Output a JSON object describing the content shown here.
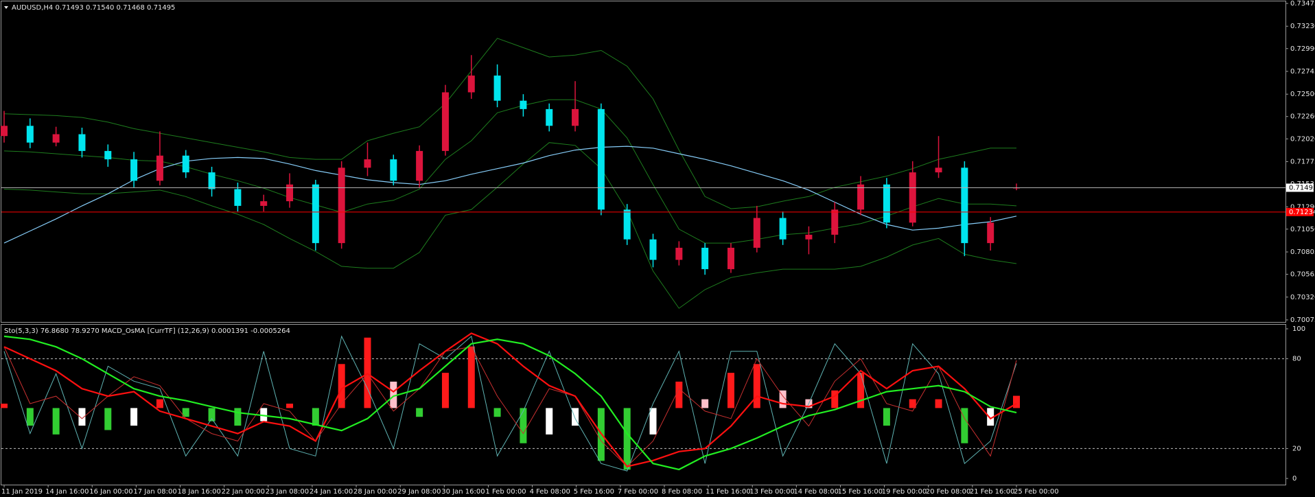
{
  "chart_data": [
    {
      "type": "candlestick",
      "title": "AUDUSD,H4  0.71493 0.71540 0.71468 0.71495",
      "open": [
        0.7205,
        0.7216,
        0.7198,
        0.7207,
        0.7189,
        0.718,
        0.7157,
        0.7184,
        0.7166,
        0.7148,
        0.713,
        0.7135,
        0.7153,
        0.709,
        0.7171,
        0.718,
        0.7157,
        0.7189,
        0.7252,
        0.727,
        0.7243,
        0.7234,
        0.7216,
        0.7234,
        0.7126,
        0.7094,
        0.7072,
        0.7085,
        0.7062,
        0.7085,
        0.7117,
        0.7094,
        0.7099,
        0.7126,
        0.7153,
        0.7112,
        0.7166,
        0.7171,
        0.709,
        0.71493
      ],
      "high": [
        0.7232,
        0.7224,
        0.7215,
        0.7214,
        0.7196,
        0.7188,
        0.721,
        0.719,
        0.7172,
        0.7155,
        0.7142,
        0.7165,
        0.7158,
        0.7178,
        0.7198,
        0.7185,
        0.7195,
        0.726,
        0.7292,
        0.7282,
        0.725,
        0.724,
        0.7264,
        0.724,
        0.7132,
        0.71,
        0.7092,
        0.709,
        0.709,
        0.713,
        0.7124,
        0.7108,
        0.7134,
        0.7162,
        0.716,
        0.7178,
        0.7205,
        0.7178,
        0.7118,
        0.7154
      ],
      "low": [
        0.7198,
        0.7192,
        0.7194,
        0.7182,
        0.7172,
        0.715,
        0.7152,
        0.716,
        0.714,
        0.7124,
        0.7124,
        0.7128,
        0.7082,
        0.7084,
        0.7162,
        0.7152,
        0.715,
        0.7184,
        0.7245,
        0.7236,
        0.7226,
        0.721,
        0.721,
        0.712,
        0.7088,
        0.7064,
        0.7066,
        0.7056,
        0.7058,
        0.708,
        0.7088,
        0.7078,
        0.709,
        0.712,
        0.7106,
        0.7108,
        0.716,
        0.7076,
        0.7082,
        0.71468
      ],
      "close": [
        0.7216,
        0.7198,
        0.7207,
        0.7189,
        0.718,
        0.7157,
        0.7184,
        0.7166,
        0.7148,
        0.713,
        0.7135,
        0.7153,
        0.709,
        0.7171,
        0.718,
        0.7157,
        0.7189,
        0.7252,
        0.727,
        0.7243,
        0.7234,
        0.7216,
        0.7234,
        0.7126,
        0.7094,
        0.7072,
        0.7085,
        0.7062,
        0.7085,
        0.7117,
        0.7094,
        0.7099,
        0.7126,
        0.7153,
        0.7112,
        0.7166,
        0.7171,
        0.709,
        0.7112,
        0.71495
      ],
      "up_color": "#dc143c",
      "down_color": "#00e5ee",
      "bands": {
        "color": "#1e7d1e",
        "upper": [
          0.7229,
          0.7228,
          0.7227,
          0.7225,
          0.722,
          0.7213,
          0.7208,
          0.7203,
          0.7198,
          0.7193,
          0.7188,
          0.7182,
          0.718,
          0.718,
          0.72,
          0.7208,
          0.7215,
          0.724,
          0.7275,
          0.731,
          0.73,
          0.729,
          0.7292,
          0.7297,
          0.728,
          0.7245,
          0.719,
          0.714,
          0.7127,
          0.7129,
          0.7135,
          0.714,
          0.715,
          0.7156,
          0.7162,
          0.717,
          0.718,
          0.7186,
          0.7192,
          0.7192
        ],
        "middle": [
          0.7189,
          0.7188,
          0.7186,
          0.7184,
          0.7182,
          0.7179,
          0.7178,
          0.7172,
          0.7164,
          0.7157,
          0.7149,
          0.7139,
          0.7131,
          0.7123,
          0.7132,
          0.7136,
          0.7148,
          0.718,
          0.72,
          0.723,
          0.7238,
          0.7244,
          0.7244,
          0.7234,
          0.7203,
          0.7153,
          0.7105,
          0.709,
          0.709,
          0.7094,
          0.7099,
          0.7101,
          0.7106,
          0.7111,
          0.7119,
          0.7129,
          0.7138,
          0.7132,
          0.7132,
          0.713
        ],
        "lower": [
          0.7148,
          0.7147,
          0.7145,
          0.7143,
          0.7143,
          0.7145,
          0.7147,
          0.714,
          0.713,
          0.7121,
          0.711,
          0.7095,
          0.7081,
          0.7065,
          0.7063,
          0.7063,
          0.708,
          0.712,
          0.7126,
          0.715,
          0.7175,
          0.7198,
          0.7195,
          0.717,
          0.7125,
          0.706,
          0.702,
          0.704,
          0.7053,
          0.7058,
          0.7062,
          0.7062,
          0.7062,
          0.7065,
          0.7075,
          0.7088,
          0.7095,
          0.7078,
          0.7072,
          0.7068
        ]
      },
      "ma": {
        "color": "#87cefa",
        "values": [
          0.709,
          0.7103,
          0.7116,
          0.713,
          0.7143,
          0.7158,
          0.717,
          0.7178,
          0.7181,
          0.7182,
          0.7181,
          0.7175,
          0.7168,
          0.7163,
          0.7158,
          0.7155,
          0.7153,
          0.7157,
          0.7164,
          0.717,
          0.7176,
          0.7184,
          0.719,
          0.7193,
          0.7194,
          0.7192,
          0.7186,
          0.718,
          0.7173,
          0.7165,
          0.7157,
          0.7147,
          0.7134,
          0.7121,
          0.711,
          0.7104,
          0.7106,
          0.711,
          0.7113,
          0.7119
        ]
      },
      "ylim": [
        0.70075,
        0.73475
      ],
      "yticks": [
        {
          "value": 0.70075,
          "label": "0.70075"
        },
        {
          "value": 0.7032,
          "label": "0.70320"
        },
        {
          "value": 0.70565,
          "label": "0.70565"
        },
        {
          "value": 0.70805,
          "label": "0.70805"
        },
        {
          "value": 0.7105,
          "label": "0.71050"
        },
        {
          "value": 0.7129,
          "label": "0.71290"
        },
        {
          "value": 0.71535,
          "label": "0.71535"
        },
        {
          "value": 0.71775,
          "label": "0.71775"
        },
        {
          "value": 0.7202,
          "label": "0.72020"
        },
        {
          "value": 0.7226,
          "label": "0.72260"
        },
        {
          "value": 0.725,
          "label": "0.72500"
        },
        {
          "value": 0.72745,
          "label": "0.72745"
        },
        {
          "value": 0.7299,
          "label": "0.72990"
        },
        {
          "value": 0.7323,
          "label": "0.73230"
        },
        {
          "value": 0.73475,
          "label": "0.73475"
        }
      ],
      "price_line": {
        "value": 0.71495,
        "label": "0.71495",
        "color": "#b0b0b0"
      },
      "alert_line": {
        "value": 0.71234,
        "label": "0.71234",
        "color": "#ff0000"
      },
      "x_labels": [
        "11 Jan 2019",
        "14 Jan 16:00",
        "16 Jan 00:00",
        "17 Jan 08:00",
        "18 Jan 16:00",
        "22 Jan 00:00",
        "23 Jan 08:00",
        "24 Jan 16:00",
        "28 Jan 00:00",
        "29 Jan 08:00",
        "30 Jan 16:00",
        "1 Feb 00:00",
        "4 Feb 08:00",
        "5 Feb 16:00",
        "7 Feb 00:00",
        "8 Feb 08:00",
        "11 Feb 16:00",
        "13 Feb 00:00",
        "14 Feb 08:00",
        "15 Feb 16:00",
        "19 Feb 00:00",
        "20 Feb 08:00",
        "21 Feb 16:00",
        "25 Feb 00:00"
      ]
    },
    {
      "type": "oscillator",
      "title": "Sto(5,3,3) 76.8680 78.9270  MACD_OsMA [CurrTF] (12,26,9) 0.0001391 -0.0005264",
      "ylim": [
        0,
        100
      ],
      "yticks": [
        0,
        20,
        80,
        100
      ],
      "levels": [
        20,
        80
      ],
      "stoch_k": {
        "color": "#5fb4b4",
        "values": [
          85,
          30,
          70,
          20,
          75,
          65,
          60,
          15,
          40,
          15,
          85,
          20,
          15,
          95,
          60,
          20,
          90,
          80,
          95,
          15,
          45,
          85,
          40,
          10,
          5,
          50,
          85,
          10,
          85,
          85,
          15,
          50,
          90,
          70,
          10,
          90,
          70,
          10,
          25,
          76.868
        ]
      },
      "stoch_d": {
        "color": "#c83030",
        "values": [
          88,
          50,
          55,
          40,
          55,
          68,
          62,
          40,
          30,
          25,
          50,
          45,
          25,
          50,
          70,
          45,
          60,
          85,
          88,
          55,
          30,
          60,
          55,
          25,
          8,
          25,
          60,
          45,
          40,
          80,
          55,
          35,
          65,
          80,
          50,
          45,
          75,
          40,
          15,
          78.927
        ]
      },
      "fast_line": {
        "color": "#ff1010",
        "values": [
          88,
          80,
          72,
          60,
          55,
          58,
          45,
          40,
          35,
          30,
          38,
          35,
          25,
          60,
          70,
          58,
          72,
          85,
          97,
          90,
          75,
          62,
          55,
          30,
          8,
          12,
          18,
          20,
          35,
          55,
          50,
          48,
          55,
          72,
          60,
          72,
          75,
          60,
          40,
          50
        ]
      },
      "slow_line": {
        "color": "#22ee22",
        "values": [
          95,
          93,
          88,
          80,
          70,
          60,
          55,
          52,
          48,
          44,
          42,
          40,
          36,
          32,
          40,
          55,
          60,
          75,
          90,
          93,
          90,
          82,
          70,
          55,
          30,
          10,
          6,
          15,
          20,
          27,
          35,
          42,
          46,
          52,
          58,
          60,
          62,
          58,
          48,
          44
        ]
      },
      "osma": {
        "ylim": [
          -0.0008,
          0.0009
        ],
        "colors": {
          "up_rising": "#ff1a1a",
          "up_falling": "#ffc0cb",
          "down_falling": "#32cd32",
          "down_rising": "#ffffff"
        },
        "values": [
          5e-05,
          -0.0002,
          -0.0003,
          -0.0002,
          -0.00025,
          -0.0002,
          0.0001,
          -0.0001,
          -0.00015,
          -0.0002,
          -0.00015,
          5e-05,
          -0.0002,
          0.0005,
          0.0008,
          0.0003,
          -0.0001,
          0.0004,
          0.0007,
          -0.0001,
          -0.0004,
          -0.0003,
          -0.0002,
          -0.0006,
          -0.0007,
          -0.0003,
          0.0003,
          0.0001,
          0.0004,
          0.0005,
          0.0002,
          0.0001,
          0.0002,
          0.0004,
          -0.0002,
          0.0001,
          0.0001,
          -0.0004,
          -0.0002,
          0.0001391
        ]
      }
    }
  ]
}
